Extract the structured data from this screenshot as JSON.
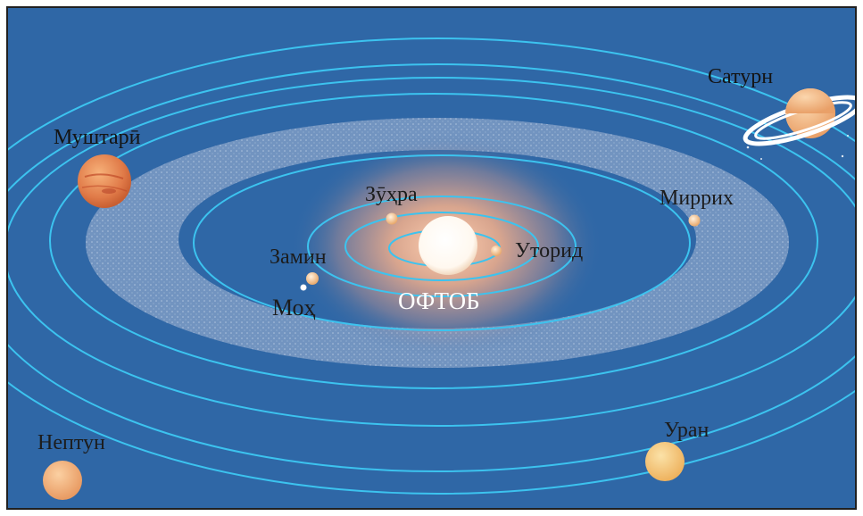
{
  "diagram": {
    "colors": {
      "space": "#2f67a6",
      "orbit": "#3cc3ef",
      "belt": "#8aa3c8",
      "sun": "#ffffff",
      "sun_glow": "#f6b08a",
      "frame": "#202020"
    },
    "sun": {
      "label": "ОФТОБ"
    },
    "planets": [
      {
        "id": "mercury",
        "label": "Уторид",
        "color": "#f2c98a"
      },
      {
        "id": "venus",
        "label": "Зӯҳра",
        "color": "#f4d2a8"
      },
      {
        "id": "earth",
        "label": "Замин",
        "color": "#e9a86a"
      },
      {
        "id": "moon",
        "label": "Моҳ",
        "color": "#ffffff"
      },
      {
        "id": "mars",
        "label": "Миррих",
        "color": "#f1c48c"
      },
      {
        "id": "jupiter",
        "label": "Муштарӣ",
        "color": "#e07a48"
      },
      {
        "id": "saturn",
        "label": "Сатурн",
        "color": "#f4b580"
      },
      {
        "id": "uranus",
        "label": "Уран",
        "color": "#f6c878"
      },
      {
        "id": "neptune",
        "label": "Нептун",
        "color": "#f2b07c"
      }
    ]
  }
}
